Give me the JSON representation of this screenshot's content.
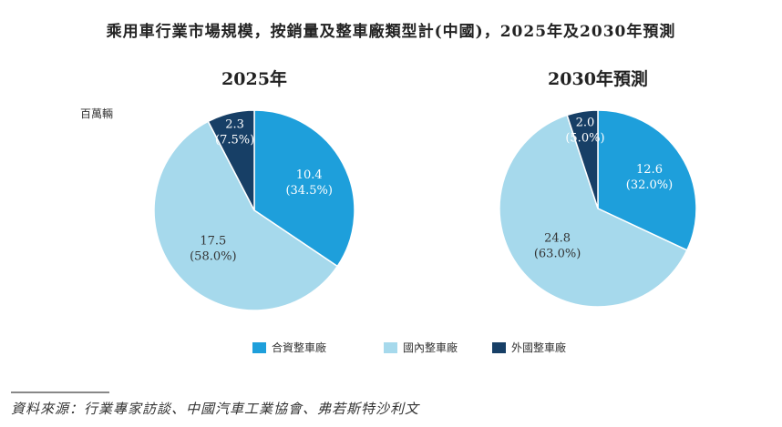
{
  "chart_data": [
    {
      "type": "pie",
      "title": "2025年",
      "unit": "百萬輛",
      "start": "top",
      "direction": "clockwise",
      "slices": [
        {
          "name": "合資整車廠",
          "value": 10.4,
          "pct": "34.5%"
        },
        {
          "name": "國內整車廠",
          "value": 17.5,
          "pct": "58.0%"
        },
        {
          "name": "外國整車廠",
          "value": 2.3,
          "pct": "7.5%"
        }
      ]
    },
    {
      "type": "pie",
      "title": "2030年預測",
      "start": "top",
      "direction": "clockwise",
      "slices": [
        {
          "name": "合資整車廠",
          "value": 12.6,
          "pct": "32.0%"
        },
        {
          "name": "國內整車廠",
          "value": 24.8,
          "pct": "63.0%"
        },
        {
          "name": "外國整車廠",
          "value": 2.0,
          "pct": "5.0%"
        }
      ]
    }
  ],
  "title": "乘用車行業市場規模，按銷量及整車廠類型計(中國)，2025年及2030年預測",
  "legend": [
    {
      "label": "合資整車廠",
      "color": "#1e9fdb"
    },
    {
      "label": "國內整車廠",
      "color": "#a6d9ec"
    },
    {
      "label": "外國整車廠",
      "color": "#173f66"
    }
  ],
  "source": "資料來源：行業專家訪談、中國汽車工業協會、弗若斯特沙利文"
}
